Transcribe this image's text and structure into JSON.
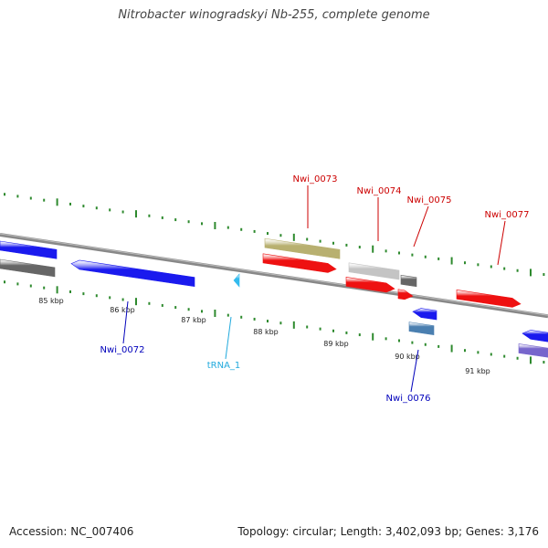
{
  "title": "Nitrobacter winogradskyi Nb-255, complete genome",
  "footer": {
    "accession": "Accession: NC_007406",
    "summary": "Topology: circular; Length: 3,402,093 bp; Genes: 3,176"
  },
  "colors": {
    "forward_gene": "#ee1111",
    "reverse_gene": "#1a1aee",
    "pseudogene": "#b8b070",
    "light_gray_feature": "#c4c4c4",
    "dark_gray_feature": "#666666",
    "steel_blue_feature": "#4a7fb0",
    "trna": "#33bbee",
    "slate_blue_gene": "#7766cc",
    "tick_marks": "#2e8a2e",
    "backbone": "#888888",
    "forward_label": "#cc0000",
    "reverse_label": "#0000bb",
    "trna_label": "#22aadd"
  },
  "scale": {
    "unit": "kbp",
    "labels": [
      "85 kbp",
      "86 kbp",
      "87 kbp",
      "88 kbp",
      "89 kbp",
      "90 kbp",
      "91 kbp"
    ]
  },
  "features": [
    {
      "id": "Nwi_0072",
      "label": "Nwi_0072",
      "strand": "reverse",
      "kind": "gene",
      "color": "reverse_gene"
    },
    {
      "id": "tRNA_1",
      "label": "tRNA_1",
      "strand": "reverse",
      "kind": "tRNA",
      "color": "trna"
    },
    {
      "id": "Nwi_0073",
      "label": "Nwi_0073",
      "strand": "forward",
      "kind": "gene",
      "color": "forward_gene"
    },
    {
      "id": "Nwi_0074",
      "label": "Nwi_0074",
      "strand": "forward",
      "kind": "gene",
      "color": "forward_gene"
    },
    {
      "id": "Nwi_0075",
      "label": "Nwi_0075",
      "strand": "forward",
      "kind": "gene",
      "color": "forward_gene"
    },
    {
      "id": "Nwi_0076",
      "label": "Nwi_0076",
      "strand": "reverse",
      "kind": "gene",
      "color": "reverse_gene"
    },
    {
      "id": "Nwi_0077",
      "label": "Nwi_0077",
      "strand": "forward",
      "kind": "gene",
      "color": "forward_gene"
    }
  ]
}
